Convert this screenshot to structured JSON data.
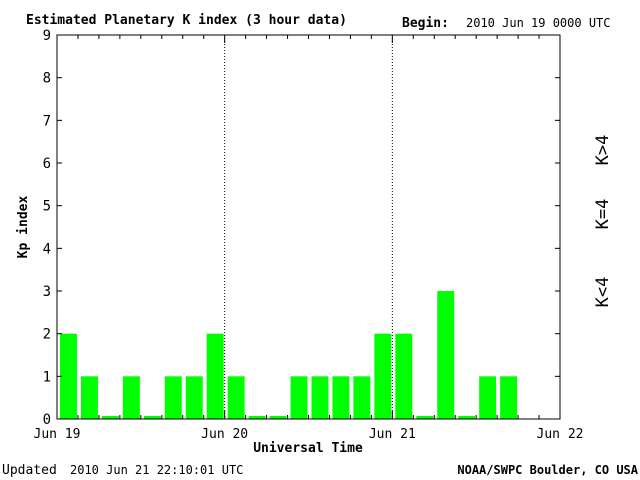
{
  "header": {
    "title": "Estimated Planetary K index (3 hour data)",
    "begin_label": "Begin:",
    "begin_value": "2010 Jun 19 0000 UTC"
  },
  "footer": {
    "updated_label": "Updated",
    "updated_value": "2010 Jun 21 22:10:01 UTC",
    "source": "NOAA/SWPC Boulder, CO USA"
  },
  "legend": {
    "low": {
      "label": "K<4",
      "color": "#00ff00"
    },
    "mid": {
      "label": "K=4",
      "color": "#ffd700"
    },
    "high": {
      "label": "K>4",
      "color": "#ff2200"
    }
  },
  "chart_data": {
    "type": "bar",
    "ylabel": "Kp index",
    "xlabel": "Universal Time",
    "ylim": [
      0,
      9
    ],
    "yticks": [
      0,
      1,
      2,
      3,
      4,
      5,
      6,
      7,
      8,
      9
    ],
    "day_labels": [
      "Jun 19",
      "Jun 20",
      "Jun 21",
      "Jun 22"
    ],
    "bars_per_day": 8,
    "values": [
      2,
      1,
      0,
      1,
      0,
      1,
      1,
      2,
      1,
      0,
      0,
      1,
      1,
      1,
      1,
      2,
      2,
      0,
      3,
      0,
      1,
      1
    ],
    "bar_color": "#00ff00",
    "day_separators": "dotted"
  }
}
